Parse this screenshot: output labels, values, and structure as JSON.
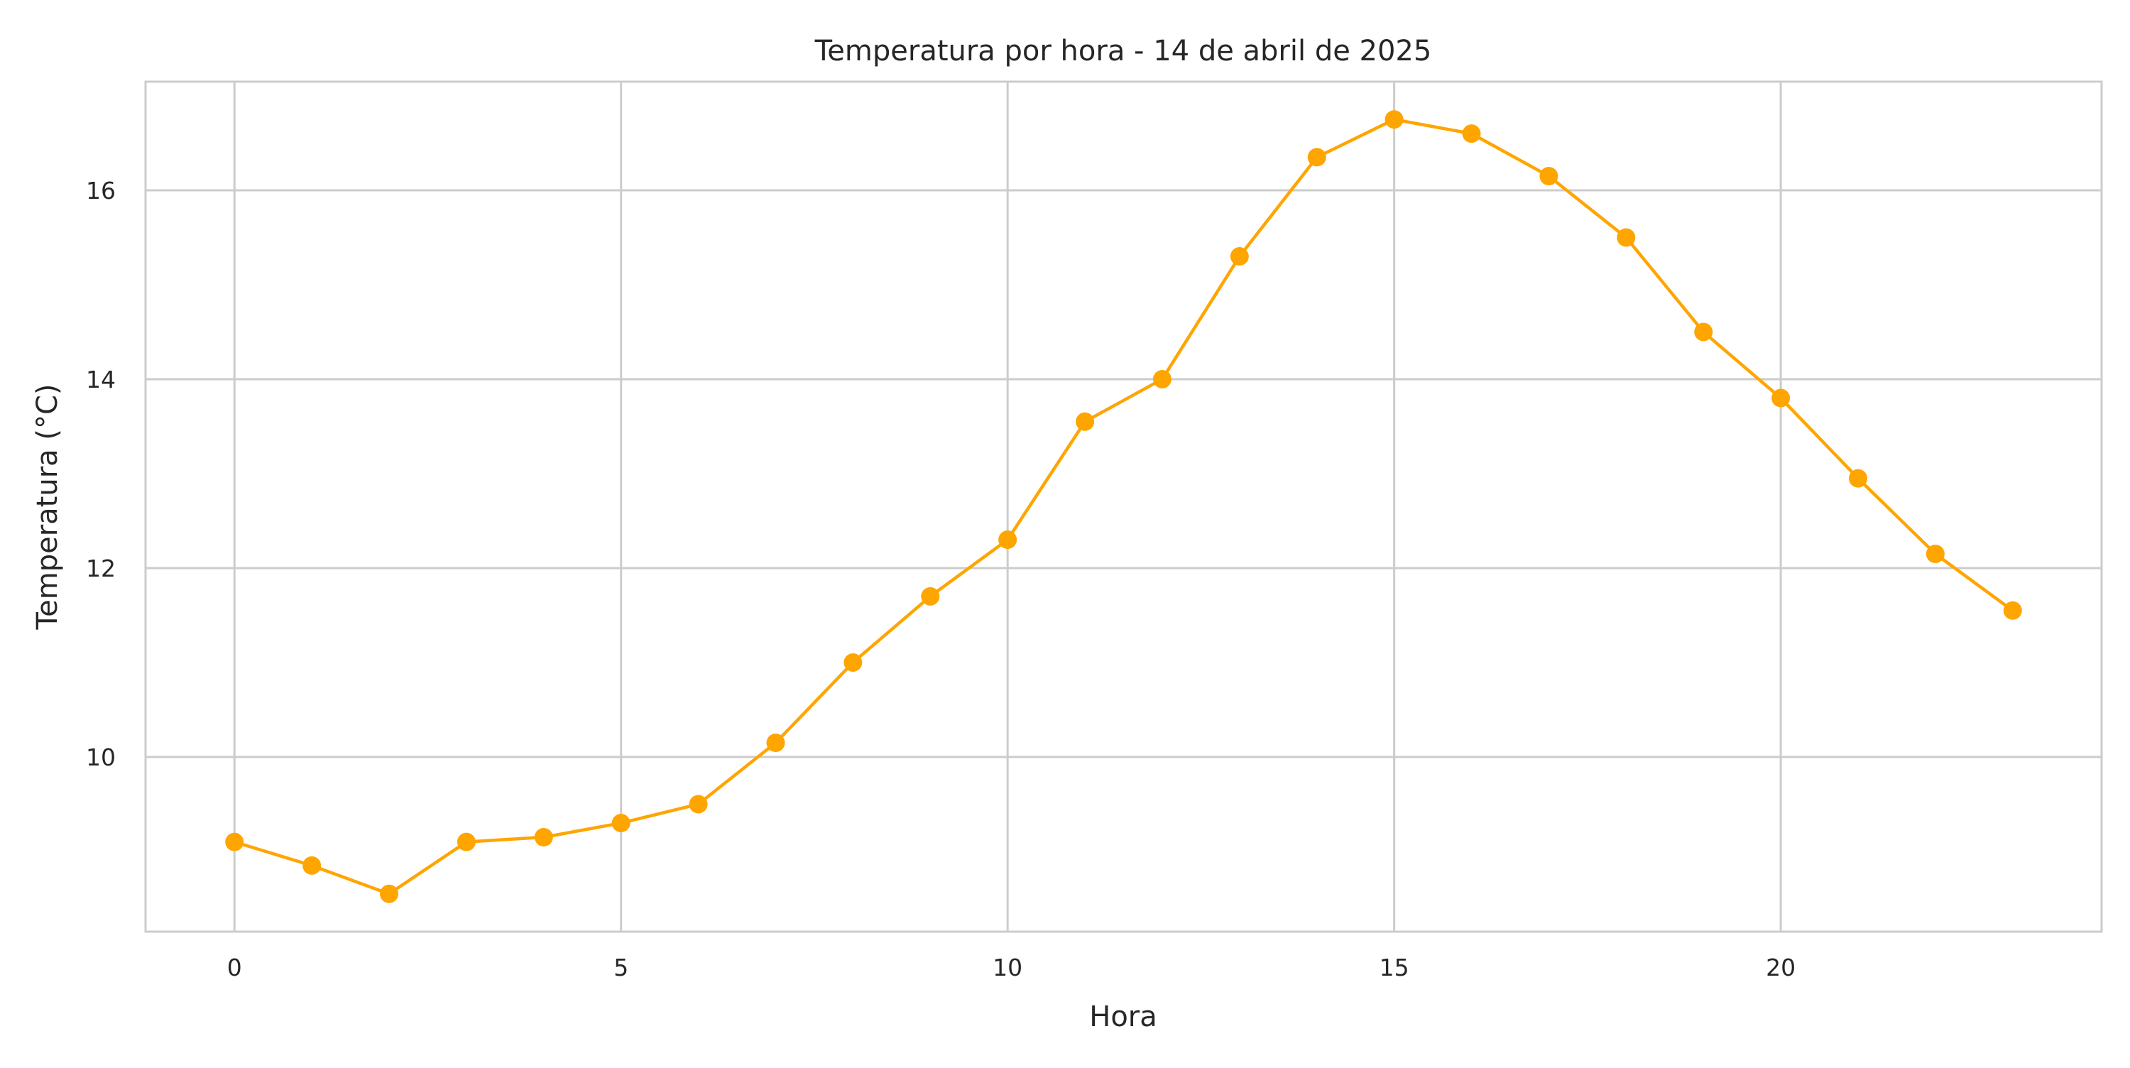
{
  "chart_data": {
    "type": "line",
    "title": "Temperatura por hora - 14 de abril de 2025",
    "xlabel": "Hora",
    "ylabel": "Temperatura (°C)",
    "x": [
      0,
      1,
      2,
      3,
      4,
      5,
      6,
      7,
      8,
      9,
      10,
      11,
      12,
      13,
      14,
      15,
      16,
      17,
      18,
      19,
      20,
      21,
      22,
      23
    ],
    "series": [
      {
        "values": [
          9.1,
          8.85,
          8.55,
          9.1,
          9.15,
          9.3,
          9.5,
          10.15,
          11.0,
          11.7,
          12.3,
          13.55,
          14.0,
          15.3,
          16.35,
          16.75,
          16.6,
          16.15,
          15.5,
          14.5,
          13.8,
          12.95,
          12.15,
          11.55
        ],
        "color": "#FFA500"
      }
    ],
    "xlim": [
      -1.15,
      24.15
    ],
    "ylim": [
      8.15,
      17.15
    ],
    "xticks": [
      0,
      5,
      10,
      15,
      20
    ],
    "xtick_labels": [
      "0",
      "5",
      "10",
      "15",
      "20"
    ],
    "yticks": [
      10,
      12,
      14,
      16
    ],
    "ytick_labels": [
      "10",
      "12",
      "14",
      "16"
    ],
    "grid": true,
    "legend": "none"
  }
}
